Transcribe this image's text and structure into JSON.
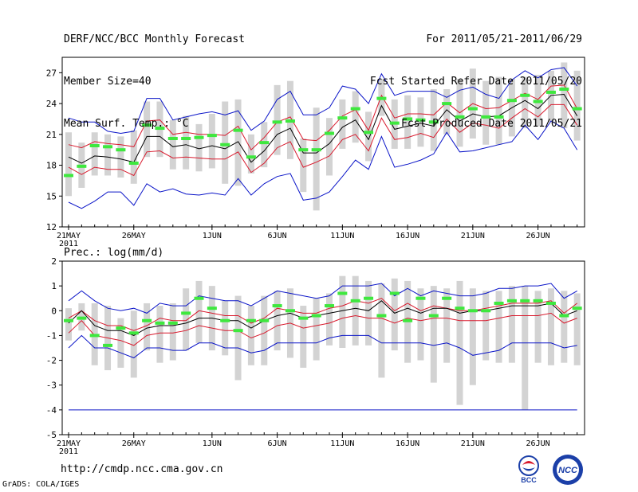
{
  "header": {
    "left": [
      "DERF/NCC/BCC Monthly Forecast",
      "Member Size=40",
      "Mean Surf. Temp.: °C"
    ],
    "right": [
      "For 2011/05/21-2011/06/29",
      "Fcst Started Refer Date 2011/05/20",
      "Fcst Produced Date 2011/05/21"
    ]
  },
  "footer": {
    "url": "http://cmdp.ncc.cma.gov.cn",
    "credit": "GrADS: COLA/IGES"
  },
  "logos": {
    "bcc": "BCC",
    "ncc": "NCC"
  },
  "colors": {
    "mean": "#000000",
    "std": "#d8192c",
    "extreme": "#0a14c8",
    "obs": "#3ee83e",
    "spread": "#d3d3d3"
  },
  "chart_data": [
    {
      "type": "line",
      "title": "Mean Surf. Temp.: °C",
      "x_tick_labels": [
        "21MAY",
        "26MAY",
        "1JUN",
        "6JUN",
        "11JUN",
        "16JUN",
        "21JUN",
        "26JUN"
      ],
      "x_tick_days": [
        0,
        5,
        11,
        16,
        21,
        26,
        31,
        36
      ],
      "year_label": "2011",
      "ylim": [
        12,
        28.5
      ],
      "yticks": [
        12,
        15,
        18,
        21,
        24,
        27
      ],
      "ytick_labels": [
        "12",
        "15",
        "18",
        "21",
        "24",
        "27"
      ],
      "series": [
        {
          "name": "max",
          "color": "#0a14c8",
          "values": [
            22.6,
            22.2,
            22.2,
            21.3,
            21.1,
            21.3,
            24.5,
            24.5,
            22.4,
            22.7,
            23.0,
            23.2,
            22.9,
            23.3,
            21.4,
            22.3,
            24.4,
            25.2,
            22.9,
            22.9,
            23.6,
            25.7,
            25.4,
            24.0,
            26.9,
            24.8,
            25.2,
            25.2,
            25.2,
            24.6,
            25.3,
            25.6,
            24.9,
            24.5,
            26.3,
            27.2,
            26.5,
            27.3,
            27.5,
            25.7
          ]
        },
        {
          "name": "mean_plus_std",
          "color": "#d8192c",
          "values": [
            20.0,
            19.7,
            20.3,
            20.1,
            20.0,
            19.8,
            22.3,
            22.4,
            21.0,
            21.2,
            21.0,
            21.0,
            20.9,
            21.8,
            19.5,
            20.7,
            22.2,
            22.7,
            20.5,
            20.4,
            21.4,
            22.8,
            23.4,
            21.4,
            24.8,
            22.6,
            23.0,
            23.0,
            22.9,
            24.1,
            23.1,
            24.0,
            23.5,
            23.6,
            24.3,
            25.0,
            24.4,
            25.7,
            25.8,
            23.5
          ]
        },
        {
          "name": "mean",
          "color": "#000000",
          "values": [
            18.8,
            18.2,
            18.9,
            18.8,
            18.6,
            18.3,
            20.8,
            20.8,
            19.8,
            20.0,
            19.6,
            19.9,
            19.6,
            20.3,
            18.3,
            19.4,
            21.0,
            21.6,
            19.2,
            19.2,
            20.1,
            21.7,
            22.4,
            20.5,
            23.8,
            21.5,
            21.8,
            22.1,
            21.8,
            23.4,
            22.3,
            23.0,
            22.7,
            22.8,
            23.6,
            24.3,
            23.5,
            24.8,
            24.9,
            22.8
          ]
        },
        {
          "name": "mean_minus_std",
          "color": "#d8192c",
          "values": [
            17.8,
            17.1,
            17.8,
            17.6,
            17.6,
            17.0,
            19.3,
            19.4,
            18.7,
            18.8,
            18.7,
            18.6,
            18.6,
            19.3,
            17.3,
            18.2,
            19.7,
            20.3,
            17.8,
            18.3,
            18.9,
            20.5,
            21.0,
            19.4,
            22.6,
            20.5,
            20.7,
            21.1,
            20.7,
            22.5,
            21.2,
            22.1,
            21.9,
            21.6,
            22.6,
            23.5,
            22.7,
            23.9,
            23.9,
            21.9
          ]
        },
        {
          "name": "min",
          "color": "#0a14c8",
          "values": [
            14.4,
            13.8,
            14.5,
            15.4,
            15.4,
            14.1,
            16.2,
            15.4,
            15.7,
            15.2,
            15.1,
            15.3,
            15.1,
            16.7,
            15.1,
            16.2,
            16.9,
            17.2,
            14.6,
            14.8,
            15.4,
            16.9,
            18.5,
            17.6,
            20.8,
            17.8,
            18.1,
            18.5,
            19.1,
            21.2,
            19.3,
            19.4,
            19.7,
            20.0,
            20.3,
            21.9,
            20.5,
            22.3,
            21.6,
            19.5
          ]
        }
      ],
      "observed": [
        17.0,
        17.9,
        19.9,
        19.8,
        19.5,
        18.2,
        21.9,
        21.6,
        20.6,
        20.6,
        20.7,
        20.9,
        20.0,
        21.4,
        18.8,
        20.2,
        22.2,
        22.3,
        19.5,
        19.5,
        21.1,
        22.6,
        23.5,
        21.2,
        24.5,
        22.1,
        22.5,
        22.4,
        22.2,
        24.0,
        22.7,
        23.5,
        22.7,
        22.7,
        24.3,
        24.8,
        24.2,
        25.1,
        25.4,
        23.5
      ],
      "spread_low": [
        15.0,
        15.8,
        17.0,
        17.0,
        16.8,
        16.2,
        18.8,
        18.8,
        17.6,
        17.6,
        17.4,
        17.7,
        16.2,
        16.0,
        17.2,
        17.8,
        19.0,
        18.6,
        15.4,
        13.6,
        17.0,
        19.6,
        20.2,
        18.4,
        22.8,
        19.6,
        19.6,
        19.8,
        19.4,
        21.0,
        19.8,
        20.6,
        20.0,
        20.0,
        20.8,
        21.6,
        21.8,
        22.2,
        21.6,
        20.4
      ],
      "spread_high": [
        21.2,
        20.2,
        21.2,
        21.0,
        20.8,
        21.4,
        24.2,
        24.2,
        22.4,
        22.8,
        22.0,
        23.0,
        24.2,
        24.4,
        21.0,
        22.2,
        25.8,
        26.2,
        20.6,
        23.6,
        22.6,
        24.4,
        25.2,
        23.2,
        26.4,
        24.4,
        24.8,
        24.6,
        25.4,
        25.4,
        26.4,
        27.4,
        26.2,
        26.6,
        26.4,
        26.6,
        26.8,
        27.2,
        28.0,
        27.2
      ]
    },
    {
      "type": "line",
      "title": "Prec.: log(mm/d)",
      "x_tick_labels": [
        "21MAY",
        "26MAY",
        "1JUN",
        "6JUN",
        "11JUN",
        "16JUN",
        "21JUN",
        "26JUN"
      ],
      "x_tick_days": [
        0,
        5,
        11,
        16,
        21,
        26,
        31,
        36
      ],
      "year_label": "2011",
      "ylim": [
        -5,
        2
      ],
      "yticks": [
        -5,
        -4,
        -3,
        -2,
        -1,
        0,
        1,
        2
      ],
      "ytick_labels": [
        "-5",
        "-4",
        "-3",
        "-2",
        "-1",
        "0",
        "1",
        "2"
      ],
      "reference_line": -4,
      "series": [
        {
          "name": "max",
          "color": "#0a14c8",
          "values": [
            0.4,
            0.8,
            0.4,
            0.1,
            0.0,
            0.1,
            -0.1,
            0.3,
            0.2,
            0.2,
            0.6,
            0.5,
            0.4,
            0.4,
            0.2,
            0.5,
            0.8,
            0.7,
            0.6,
            0.5,
            0.6,
            1.0,
            1.0,
            1.0,
            1.1,
            0.6,
            0.9,
            0.6,
            0.8,
            0.7,
            0.6,
            0.6,
            0.7,
            0.9,
            0.9,
            1.0,
            1.0,
            1.1,
            0.5,
            0.8
          ]
        },
        {
          "name": "mean_plus_std",
          "color": "#d8192c",
          "values": [
            -0.3,
            0.0,
            -0.4,
            -0.6,
            -0.6,
            -0.8,
            -0.6,
            -0.3,
            -0.4,
            -0.4,
            0.0,
            -0.1,
            -0.2,
            -0.2,
            -0.5,
            -0.3,
            0.1,
            0.0,
            -0.1,
            -0.1,
            0.1,
            0.2,
            0.4,
            0.3,
            0.5,
            0.0,
            0.3,
            0.0,
            0.2,
            0.1,
            0.0,
            0.0,
            0.1,
            0.2,
            0.3,
            0.3,
            0.3,
            0.4,
            -0.1,
            0.3
          ]
        },
        {
          "name": "mean",
          "color": "#000000",
          "values": [
            -0.5,
            0.0,
            -0.6,
            -0.8,
            -0.8,
            -1.0,
            -0.7,
            -0.6,
            -0.6,
            -0.5,
            -0.3,
            -0.3,
            -0.4,
            -0.4,
            -0.7,
            -0.4,
            -0.2,
            -0.1,
            -0.3,
            -0.2,
            -0.1,
            0.0,
            0.1,
            0.0,
            0.4,
            -0.1,
            0.1,
            -0.1,
            0.1,
            0.1,
            -0.1,
            0.0,
            0.0,
            0.1,
            0.2,
            0.2,
            0.2,
            0.3,
            -0.2,
            0.0
          ]
        },
        {
          "name": "mean_minus_std",
          "color": "#d8192c",
          "values": [
            -0.9,
            -0.4,
            -1.0,
            -1.1,
            -1.2,
            -1.4,
            -1.0,
            -0.9,
            -0.9,
            -0.8,
            -0.6,
            -0.7,
            -0.8,
            -0.8,
            -1.1,
            -0.9,
            -0.6,
            -0.5,
            -0.7,
            -0.6,
            -0.5,
            -0.3,
            -0.2,
            -0.3,
            -0.3,
            -0.5,
            -0.3,
            -0.4,
            -0.3,
            -0.3,
            -0.4,
            -0.4,
            -0.4,
            -0.3,
            -0.2,
            -0.2,
            -0.2,
            -0.1,
            -0.5,
            -0.3
          ]
        },
        {
          "name": "min",
          "color": "#0a14c8",
          "values": [
            -1.5,
            -1.0,
            -1.5,
            -1.5,
            -1.7,
            -1.9,
            -1.5,
            -1.5,
            -1.6,
            -1.6,
            -1.3,
            -1.3,
            -1.5,
            -1.5,
            -1.7,
            -1.6,
            -1.3,
            -1.3,
            -1.3,
            -1.3,
            -1.1,
            -1.0,
            -1.0,
            -1.0,
            -1.3,
            -1.3,
            -1.3,
            -1.3,
            -1.4,
            -1.3,
            -1.5,
            -1.8,
            -1.7,
            -1.6,
            -1.3,
            -1.3,
            -1.3,
            -1.3,
            -1.5,
            -1.4
          ]
        },
        {
          "name": "lower_bound",
          "color": "#0a14c8",
          "values": [
            -4,
            -4,
            -4,
            -4,
            -4,
            -4,
            -4,
            -4,
            -4,
            -4,
            -4,
            -4,
            -4,
            -4,
            -4,
            -4,
            -4,
            -4,
            -4,
            -4,
            -4,
            -4,
            -4,
            -4,
            -4,
            -4,
            -4,
            -4,
            -4,
            -4,
            -4,
            -4,
            -4,
            -4,
            -4,
            -4,
            -4,
            -4,
            -4,
            -4
          ]
        }
      ],
      "observed": [
        -0.4,
        -0.3,
        -1.0,
        -1.4,
        -0.7,
        -0.9,
        -0.4,
        -0.5,
        -0.5,
        -0.1,
        0.5,
        0.1,
        -0.4,
        -0.8,
        -0.4,
        -0.4,
        0.2,
        0.0,
        -0.3,
        -0.2,
        0.2,
        0.7,
        0.4,
        0.5,
        -0.2,
        0.7,
        -0.4,
        0.5,
        -0.2,
        0.5,
        0.1,
        0.0,
        0.0,
        0.3,
        0.4,
        0.4,
        0.4,
        0.3,
        -0.2,
        0.1
      ],
      "spread_low": [
        -1.2,
        -0.8,
        -2.2,
        -2.4,
        -2.3,
        -2.7,
        -1.6,
        -2.1,
        -2.0,
        -1.6,
        -1.3,
        -1.6,
        -1.8,
        -2.8,
        -2.2,
        -2.2,
        -1.6,
        -1.9,
        -2.3,
        -2.0,
        -1.4,
        -1.5,
        -1.4,
        -1.4,
        -2.7,
        -1.6,
        -2.1,
        -2.0,
        -2.9,
        -2.1,
        -3.8,
        -3.0,
        -2.0,
        -2.1,
        -2.1,
        -4.0,
        -2.1,
        -2.2,
        -2.1,
        -2.2
      ],
      "spread_high": [
        0.1,
        0.3,
        0.3,
        0.2,
        -0.3,
        0.0,
        0.3,
        0.2,
        0.3,
        0.9,
        1.2,
        1.0,
        0.4,
        0.6,
        0.2,
        0.6,
        0.8,
        0.9,
        0.2,
        0.5,
        0.7,
        1.4,
        1.4,
        1.2,
        1.1,
        1.3,
        1.2,
        0.9,
        1.0,
        0.9,
        1.2,
        0.9,
        0.8,
        0.8,
        1.0,
        1.0,
        0.8,
        0.9,
        0.8,
        0.7
      ]
    }
  ]
}
